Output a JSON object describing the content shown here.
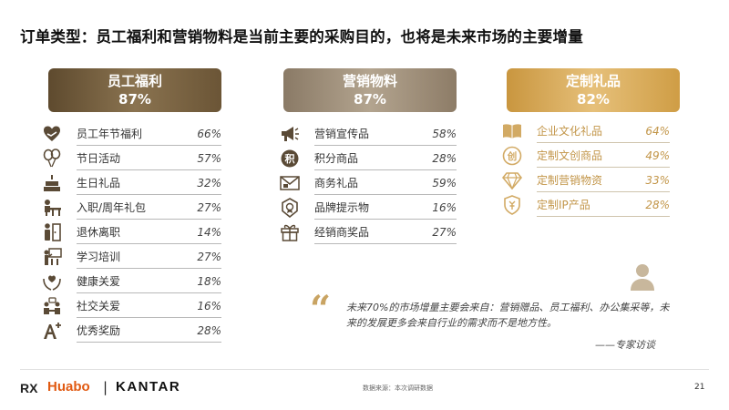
{
  "title": "订单类型：员工福利和营销物料是当前主要的采购目的，也将是未来市场的主要增量",
  "columns": [
    {
      "name": "员工福利",
      "percent": "87%",
      "items": [
        {
          "label": "员工年节福利",
          "value": "66%",
          "icon": "heart-hand-icon"
        },
        {
          "label": "节日活动",
          "value": "57%",
          "icon": "balloons-icon"
        },
        {
          "label": "生日礼品",
          "value": "32%",
          "icon": "birthday-cake-icon"
        },
        {
          "label": "入职/周年礼包",
          "value": "27%",
          "icon": "desk-person-icon"
        },
        {
          "label": "退休离职",
          "value": "14%",
          "icon": "person-exit-icon"
        },
        {
          "label": "学习培训",
          "value": "27%",
          "icon": "training-board-icon"
        },
        {
          "label": "健康关爱",
          "value": "18%",
          "icon": "care-hands-icon"
        },
        {
          "label": "社交关爱",
          "value": "16%",
          "icon": "social-chat-icon"
        },
        {
          "label": "优秀奖励",
          "value": "28%",
          "icon": "a-plus-icon"
        }
      ]
    },
    {
      "name": "营销物料",
      "percent": "87%",
      "items": [
        {
          "label": "营销宣传品",
          "value": "58%",
          "icon": "megaphone-icon"
        },
        {
          "label": "积分商品",
          "value": "28%",
          "icon": "points-badge-icon"
        },
        {
          "label": "商务礼品",
          "value": "59%",
          "icon": "envelope-icon"
        },
        {
          "label": "品牌提示物",
          "value": "16%",
          "icon": "brand-badge-icon"
        },
        {
          "label": "经销商奖品",
          "value": "27%",
          "icon": "gift-box-icon"
        }
      ]
    },
    {
      "name": "定制礼品",
      "percent": "82%",
      "items": [
        {
          "label": "企业文化礼品",
          "value": "64%",
          "icon": "open-book-icon"
        },
        {
          "label": "定制文创商品",
          "value": "49%",
          "icon": "creative-badge-icon"
        },
        {
          "label": "定制营销物资",
          "value": "33%",
          "icon": "diamond-icon"
        },
        {
          "label": "定制IP产品",
          "value": "28%",
          "icon": "shield-ip-icon"
        }
      ]
    }
  ],
  "quote": {
    "text": "未来70%的市场增量主要会来自：营销赠品、员工福利、办公集采等，未来的发展更多会来自行业的需求而不是地方性。",
    "source": "——专家访谈"
  },
  "footer": {
    "logo_rx": "RX",
    "logo_huabo": "Huabo",
    "separator": "|",
    "logo_kantar": "KANTAR",
    "source": "数据来源：本次调研数据",
    "page_number": "21"
  },
  "colors": {
    "col1": "#7a6444",
    "col2": "#a3937e",
    "col3": "#dcae5e",
    "icon_dark": "#5a4a36",
    "icon_gold": "#d2aa64",
    "huabo_orange": "#e15a12"
  }
}
